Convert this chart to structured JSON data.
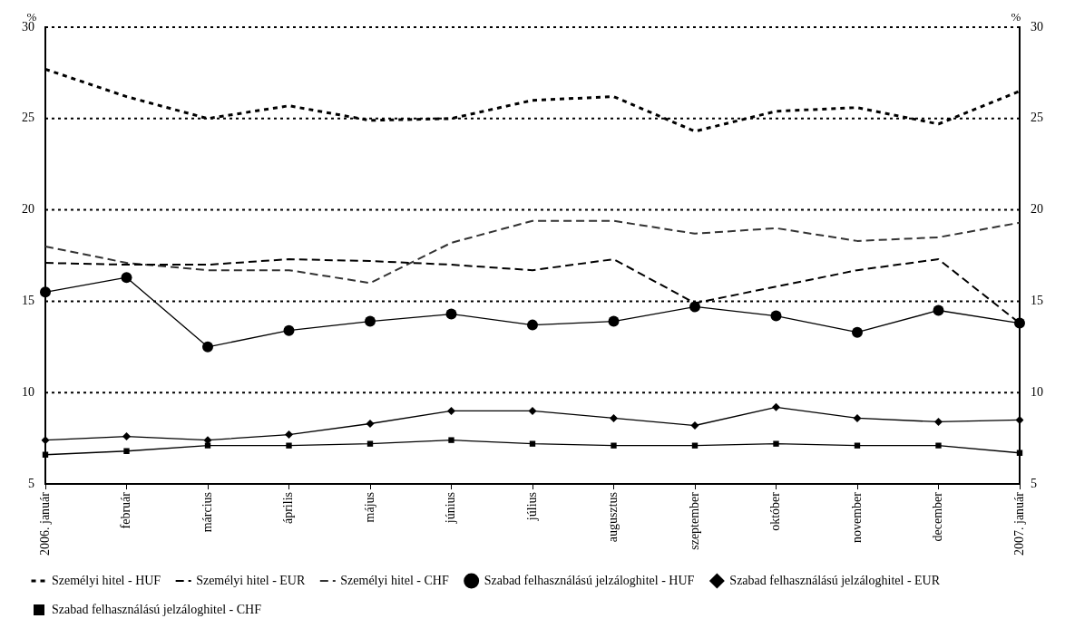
{
  "chart_data": {
    "type": "line",
    "categories": [
      "2006. január",
      "február",
      "március",
      "április",
      "május",
      "június",
      "július",
      "augusztus",
      "szeptember",
      "október",
      "november",
      "december",
      "2007. január"
    ],
    "series": [
      {
        "name": "Személyi hitel - HUF",
        "color": "#000000",
        "line_style": "dotted",
        "marker": "none",
        "values": [
          27.7,
          26.2,
          25.0,
          25.7,
          24.9,
          25.0,
          26.0,
          26.2,
          24.3,
          25.4,
          25.6,
          24.7,
          26.5
        ]
      },
      {
        "name": "Személyi hitel - EUR",
        "color": "#000000",
        "line_style": "dashed",
        "marker": "none",
        "values": [
          17.1,
          17.0,
          17.0,
          17.3,
          17.2,
          17.0,
          16.7,
          17.3,
          14.9,
          15.8,
          16.7,
          17.3,
          13.8
        ]
      },
      {
        "name": "Személyi hitel - CHF",
        "color": "#333333",
        "line_style": "dashed",
        "marker": "none",
        "values": [
          18.0,
          17.1,
          16.7,
          16.7,
          16.0,
          18.2,
          19.4,
          19.4,
          18.7,
          19.0,
          18.3,
          18.5,
          19.3
        ]
      },
      {
        "name": "Szabad felhasználású jelzáloghitel - HUF",
        "color": "#000000",
        "line_style": "solid",
        "marker": "circle",
        "values": [
          15.5,
          16.3,
          12.5,
          13.4,
          13.9,
          14.3,
          13.7,
          13.9,
          14.7,
          14.2,
          13.3,
          14.5,
          13.8
        ]
      },
      {
        "name": "Szabad felhasználású jelzáloghitel - EUR",
        "color": "#000000",
        "line_style": "solid",
        "marker": "diamond",
        "values": [
          7.4,
          7.6,
          7.4,
          7.7,
          8.3,
          9.0,
          9.0,
          8.6,
          8.2,
          9.2,
          8.6,
          8.4,
          8.5
        ]
      },
      {
        "name": "Szabad felhasználású jelzáloghitel - CHF",
        "color": "#000000",
        "line_style": "solid",
        "marker": "square",
        "values": [
          6.6,
          6.8,
          7.1,
          7.1,
          7.2,
          7.4,
          7.2,
          7.1,
          7.1,
          7.2,
          7.1,
          7.1,
          6.7
        ]
      }
    ],
    "ylabel": "%",
    "y2label": "%",
    "ylim": [
      5,
      30
    ],
    "yticks": [
      5,
      10,
      15,
      20,
      25,
      30
    ],
    "y2lim": [
      5,
      30
    ],
    "y2ticks": [
      5,
      10,
      15,
      20,
      25,
      30
    ],
    "grid": "y",
    "legend": "bottom"
  }
}
